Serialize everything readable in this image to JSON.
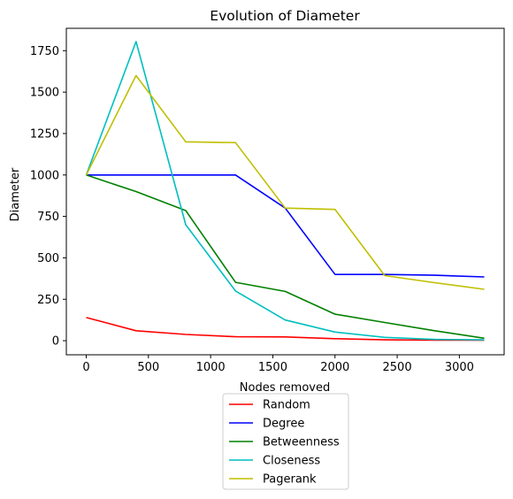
{
  "chart_data": {
    "type": "line",
    "title": "Evolution of Diameter",
    "xlabel": "Nodes removed",
    "ylabel": "Diameter",
    "xlim": [
      -160,
      3360
    ],
    "ylim": [
      -85,
      1885
    ],
    "x_ticks": [
      0,
      500,
      1000,
      1500,
      2000,
      2500,
      3000
    ],
    "y_ticks": [
      0,
      250,
      500,
      750,
      1000,
      1250,
      1500,
      1750
    ],
    "grid": false,
    "legend_position": "bottom-center, below plot",
    "series": [
      {
        "name": "Random",
        "color": "#ff0000",
        "x": [
          0,
          400,
          800,
          1200,
          1600,
          2000,
          2400,
          2800,
          3200
        ],
        "y": [
          140,
          60,
          38,
          24,
          23,
          12,
          5,
          3,
          3
        ]
      },
      {
        "name": "Degree",
        "color": "#0000ff",
        "x": [
          0,
          400,
          800,
          1200,
          1600,
          2000,
          2400,
          2800,
          3200
        ],
        "y": [
          1000,
          1000,
          1000,
          1000,
          800,
          400,
          400,
          395,
          385
        ]
      },
      {
        "name": "Betweenness",
        "color": "#008000",
        "x": [
          0,
          400,
          800,
          1200,
          1600,
          2000,
          2400,
          2800,
          3200
        ],
        "y": [
          1000,
          900,
          785,
          352,
          297,
          160,
          110,
          60,
          15
        ]
      },
      {
        "name": "Closeness",
        "color": "#00bfbf",
        "x": [
          0,
          400,
          800,
          1200,
          1600,
          2000,
          2400,
          2800,
          3200
        ],
        "y": [
          1000,
          1805,
          700,
          300,
          125,
          52,
          20,
          8,
          5
        ]
      },
      {
        "name": "Pagerank",
        "color": "#bfbf00",
        "x": [
          0,
          400,
          800,
          1200,
          1600,
          2000,
          2400,
          2800,
          3200
        ],
        "y": [
          1000,
          1600,
          1200,
          1195,
          800,
          792,
          393,
          350,
          310
        ]
      }
    ]
  }
}
